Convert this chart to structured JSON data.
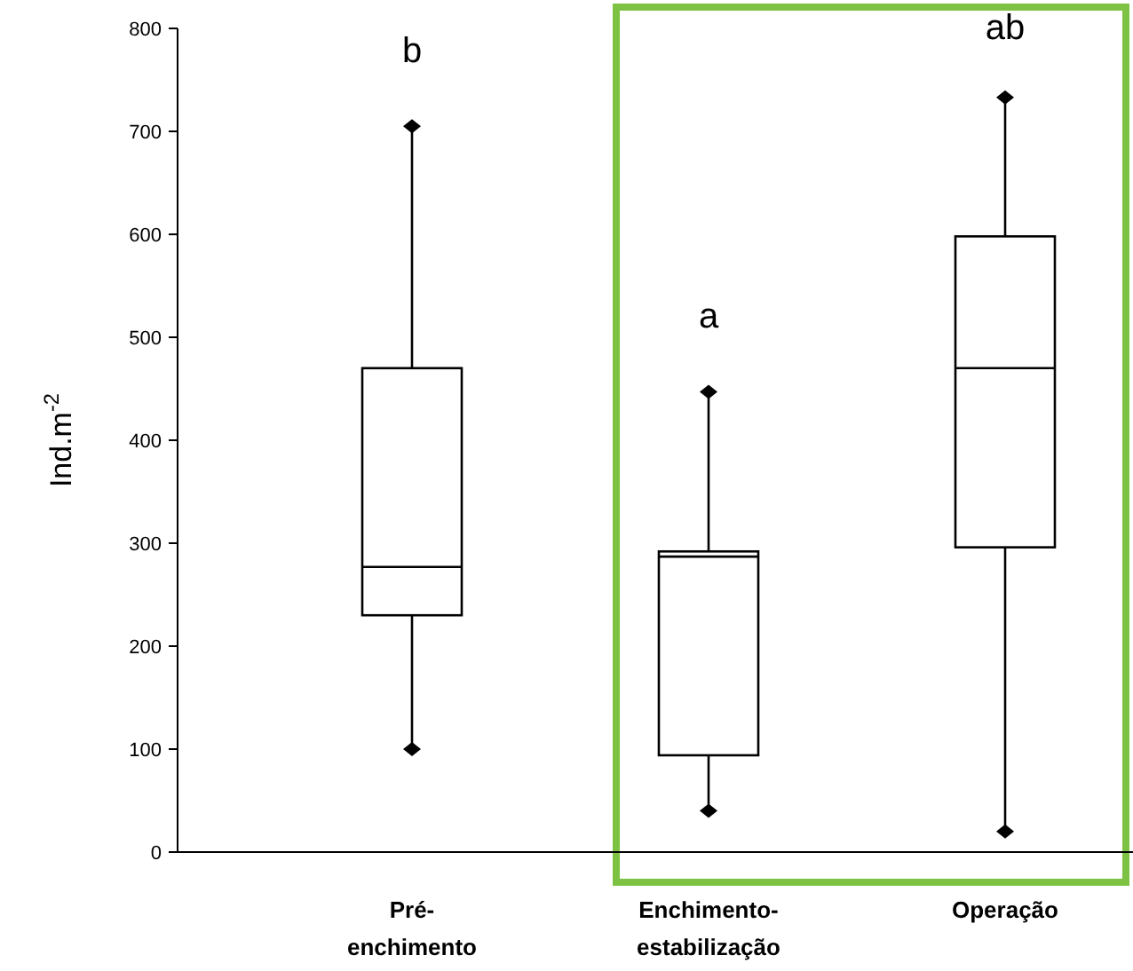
{
  "chart_data": {
    "type": "box",
    "ylabel": "Ind.m$^{-2}$",
    "categories": [
      "Pré-enchimento",
      "Enchimento-estabilização",
      "Operação"
    ],
    "boxes": [
      {
        "low": 100,
        "q1": 230,
        "median": 277,
        "q3": 470,
        "high": 705
      },
      {
        "low": 40,
        "q1": 94,
        "median": 287,
        "q3": 292,
        "high": 447
      },
      {
        "low": 20,
        "q1": 296,
        "median": 470,
        "q3": 598,
        "high": 733
      }
    ],
    "ylim": [
      0,
      800
    ],
    "yticks": [
      0,
      100,
      200,
      300,
      400,
      500,
      600,
      700,
      800
    ],
    "annotations": [
      "b",
      "a",
      "ab"
    ],
    "grid": false
  }
}
